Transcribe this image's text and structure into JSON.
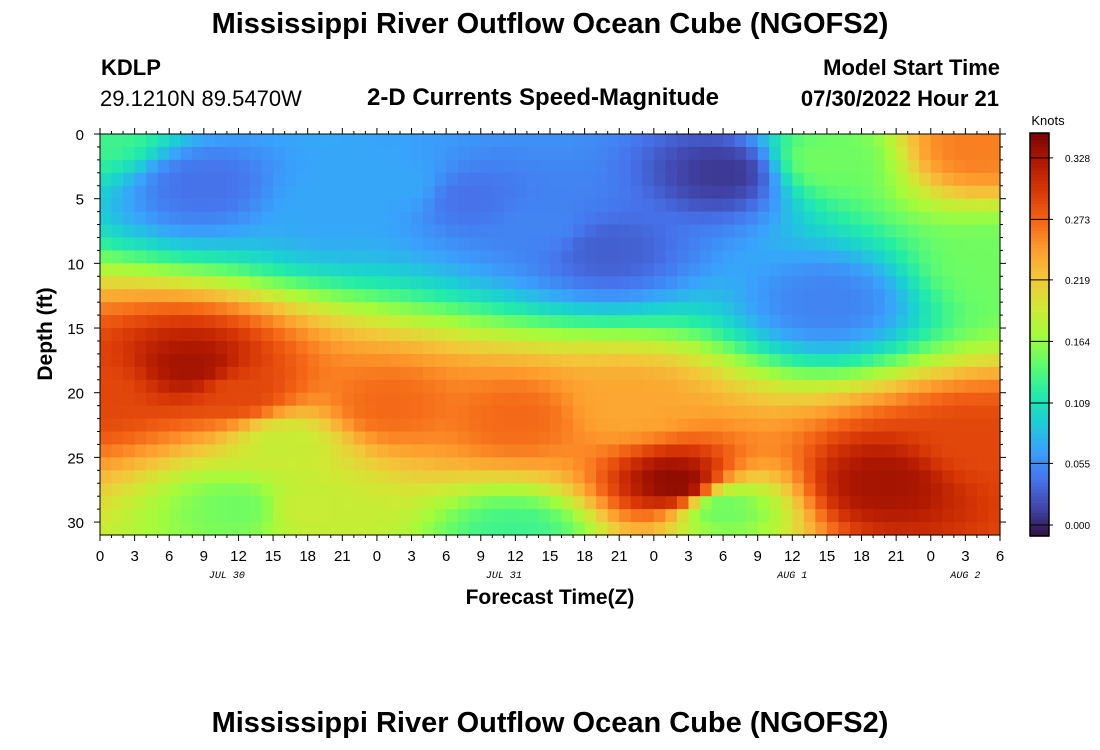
{
  "header": {
    "title": "Mississippi River Outflow Ocean Cube (NGOFS2)",
    "station": "KDLP",
    "coordinates": "29.1210N  89.5470W",
    "subtitle": "2-D Currents Speed-Magnitude",
    "model_start_label": "Model Start Time",
    "model_start_value": "07/30/2022 Hour 21"
  },
  "footer": {
    "title": "Mississippi River Outflow Ocean Cube (NGOFS2)"
  },
  "chart_data": {
    "type": "heatmap",
    "title": "2-D Currents Speed-Magnitude",
    "xlabel": "Forecast Time(Z)",
    "ylabel": "Depth (ft)",
    "x_unit": "hours since 2022-07-30 00Z",
    "x_range": [
      0,
      78
    ],
    "x_tick_hours": [
      0,
      3,
      6,
      9,
      12,
      15,
      18,
      21,
      24,
      27,
      30,
      33,
      36,
      39,
      42,
      45,
      48,
      51,
      54,
      57,
      60,
      63,
      66,
      69,
      72,
      75,
      78
    ],
    "x_tick_labels": [
      "0",
      "3",
      "6",
      "9",
      "12",
      "15",
      "18",
      "21",
      "0",
      "3",
      "6",
      "9",
      "12",
      "15",
      "18",
      "21",
      "0",
      "3",
      "6",
      "9",
      "12",
      "15",
      "18",
      "21",
      "0",
      "3",
      "6"
    ],
    "date_labels": [
      {
        "label": "JUL 30",
        "hour": 11
      },
      {
        "label": "JUL 31",
        "hour": 35
      },
      {
        "label": "AUG 1",
        "hour": 60
      },
      {
        "label": "AUG 2",
        "hour": 75
      }
    ],
    "y_range": [
      0,
      31
    ],
    "y_reversed": true,
    "y_ticks": [
      0,
      5,
      10,
      15,
      20,
      25,
      30
    ],
    "colorbar": {
      "label": "Knots",
      "range": [
        0,
        0.36
      ],
      "tick_values": [
        0.0,
        0.055,
        0.109,
        0.164,
        0.219,
        0.273,
        0.328
      ],
      "tick_labels": [
        "0.000",
        "0.055",
        "0.109",
        "0.164",
        "0.219",
        "0.273",
        "0.328"
      ],
      "colors": [
        "#30123b",
        "#4145ab",
        "#4675ed",
        "#39a2fc",
        "#1bcfd4",
        "#24eca6",
        "#61fc6c",
        "#a4fc3b",
        "#d1e834",
        "#f3c63a",
        "#fe9b2d",
        "#f36315",
        "#d93806",
        "#b11901",
        "#7a0402"
      ]
    },
    "grid": false,
    "legend": "colorbar-right",
    "features": [
      {
        "t": 0,
        "d": 0,
        "v": 0.14
      },
      {
        "t": 0,
        "d": 20,
        "v": 0.3
      },
      {
        "t": 8,
        "d": 18,
        "v": 0.34
      },
      {
        "t": 12,
        "d": 20,
        "v": 0.3
      },
      {
        "t": 16,
        "d": 24,
        "v": 0.2
      },
      {
        "t": 9,
        "d": 4,
        "v": 0.05
      },
      {
        "t": 20,
        "d": 6,
        "v": 0.08
      },
      {
        "t": 26,
        "d": 4,
        "v": 0.08
      },
      {
        "t": 32,
        "d": 5,
        "v": 0.05
      },
      {
        "t": 38,
        "d": 7,
        "v": 0.06
      },
      {
        "t": 44,
        "d": 9,
        "v": 0.04
      },
      {
        "t": 54,
        "d": 3,
        "v": 0.02
      },
      {
        "t": 63,
        "d": 2,
        "v": 0.16
      },
      {
        "t": 76,
        "d": 1,
        "v": 0.27
      },
      {
        "t": 78,
        "d": 10,
        "v": 0.16
      },
      {
        "t": 63,
        "d": 13,
        "v": 0.06
      },
      {
        "t": 25,
        "d": 21,
        "v": 0.28
      },
      {
        "t": 36,
        "d": 22,
        "v": 0.28
      },
      {
        "t": 46,
        "d": 21,
        "v": 0.25
      },
      {
        "t": 50,
        "d": 27,
        "v": 0.35
      },
      {
        "t": 54,
        "d": 29,
        "v": 0.16
      },
      {
        "t": 68,
        "d": 27,
        "v": 0.34
      },
      {
        "t": 76,
        "d": 24,
        "v": 0.3
      },
      {
        "t": 18,
        "d": 29,
        "v": 0.2
      },
      {
        "t": 36,
        "d": 31,
        "v": 0.14
      },
      {
        "t": 12,
        "d": 29,
        "v": 0.16
      }
    ]
  }
}
